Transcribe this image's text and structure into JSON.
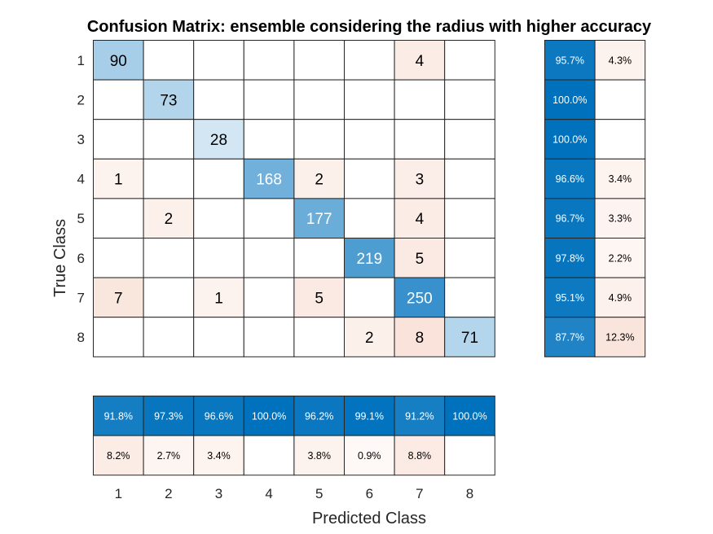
{
  "chart_data": {
    "type": "heatmap",
    "title": "Confusion Matrix: ensemble considering the radius with higher accuracy",
    "xlabel": "Predicted Class",
    "ylabel": "True Class",
    "classes": [
      "1",
      "2",
      "3",
      "4",
      "5",
      "6",
      "7",
      "8"
    ],
    "matrix": [
      [
        90,
        0,
        0,
        0,
        0,
        0,
        4,
        0
      ],
      [
        0,
        73,
        0,
        0,
        0,
        0,
        0,
        0
      ],
      [
        0,
        0,
        28,
        0,
        0,
        0,
        0,
        0
      ],
      [
        1,
        0,
        0,
        168,
        2,
        0,
        3,
        0
      ],
      [
        0,
        2,
        0,
        0,
        177,
        0,
        4,
        0
      ],
      [
        0,
        0,
        0,
        0,
        0,
        219,
        5,
        0
      ],
      [
        7,
        0,
        1,
        0,
        5,
        0,
        250,
        0
      ],
      [
        0,
        0,
        0,
        0,
        0,
        2,
        8,
        71
      ]
    ],
    "row_summary": {
      "correct": [
        "95.7%",
        "100.0%",
        "100.0%",
        "96.6%",
        "96.7%",
        "97.8%",
        "95.1%",
        "87.7%"
      ],
      "incorrect": [
        "4.3%",
        "",
        "",
        "3.4%",
        "3.3%",
        "2.2%",
        "4.9%",
        "12.3%"
      ]
    },
    "column_summary": {
      "correct": [
        "91.8%",
        "97.3%",
        "96.6%",
        "100.0%",
        "96.2%",
        "99.1%",
        "91.2%",
        "100.0%"
      ],
      "incorrect": [
        "8.2%",
        "2.7%",
        "3.4%",
        "",
        "3.8%",
        "0.9%",
        "8.8%",
        ""
      ]
    },
    "colors": {
      "correct_max": "#0072bd",
      "incorrect_max": "#d95319",
      "cell_border": "#262626"
    }
  }
}
